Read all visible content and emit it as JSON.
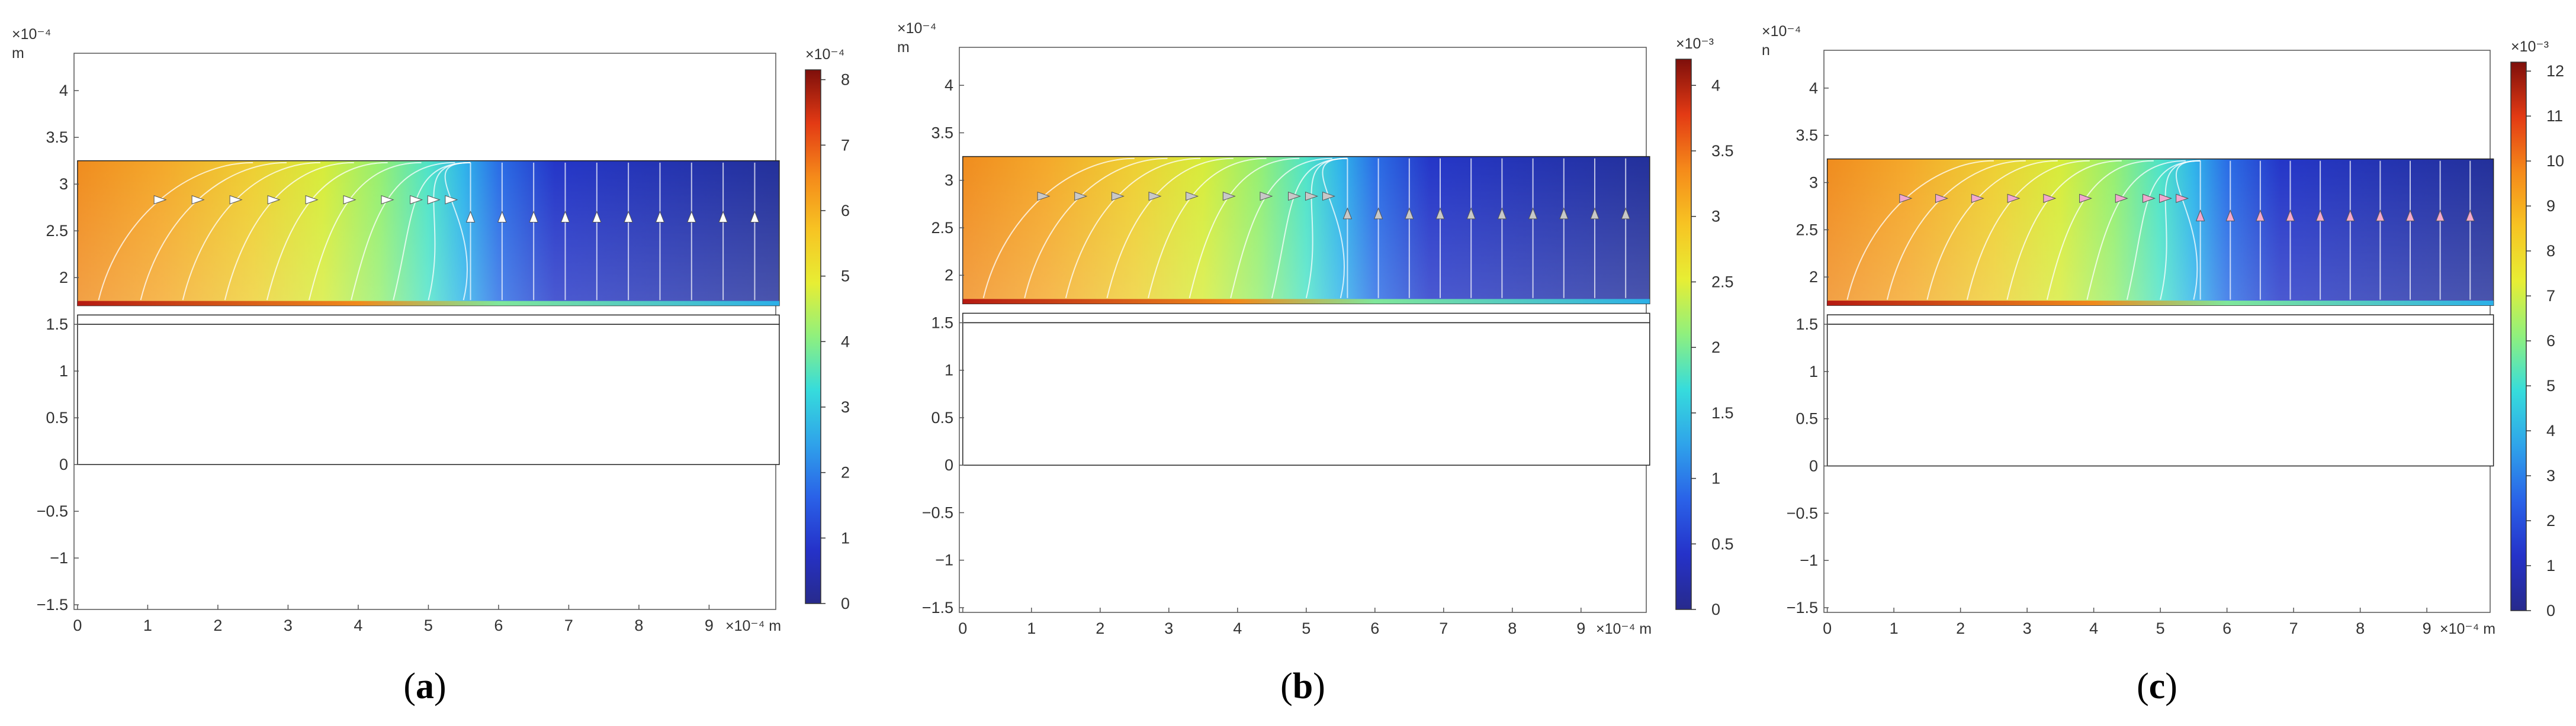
{
  "chart_data": [
    {
      "type": "heatmap",
      "panel_label": "(a)",
      "caption": {
        "open": "(",
        "letter": "a",
        "close": ")"
      },
      "x_ticks": [
        "0",
        "1",
        "2",
        "3",
        "4",
        "5",
        "6",
        "7",
        "8",
        "9"
      ],
      "y_ticks": [
        "4",
        "3.5",
        "3",
        "2.5",
        "2",
        "1.5",
        "1",
        "0.5",
        "0",
        "−0.5",
        "−1",
        "−1.5"
      ],
      "x_axis_multiplier": "×10⁻⁴ m",
      "y_axis_multiplier": "×10⁻⁴",
      "y_axis_unit": "m",
      "xlim": [
        -0.05,
        9.95
      ],
      "ylim": [
        -1.55,
        4.4
      ],
      "colorbar": {
        "multiplier": "×10⁻⁴",
        "ticks": [
          "8",
          "7",
          "6",
          "5",
          "4",
          "3",
          "2",
          "1",
          "0"
        ],
        "range": [
          0,
          8.15
        ]
      },
      "domains": {
        "top_layer_y": [
          1.7,
          3.25
        ],
        "thin_layer_y": [
          1.5,
          1.6
        ],
        "substrate_y": [
          0,
          1.5
        ],
        "x_extent": [
          0,
          10
        ]
      },
      "field_peak_x": 0,
      "streamline_arrow_color": "#ffffff"
    },
    {
      "type": "heatmap",
      "panel_label": "(b)",
      "caption": {
        "open": "(",
        "letter": "b",
        "close": ")"
      },
      "x_ticks": [
        "0",
        "1",
        "2",
        "3",
        "4",
        "5",
        "6",
        "7",
        "8",
        "9"
      ],
      "y_ticks": [
        "4",
        "3.5",
        "3",
        "2.5",
        "2",
        "1.5",
        "1",
        "0.5",
        "0",
        "−0.5",
        "−1",
        "−1.5"
      ],
      "x_axis_multiplier": "×10⁻⁴ m",
      "y_axis_multiplier": "×10⁻⁴",
      "y_axis_unit": "m",
      "xlim": [
        -0.05,
        9.95
      ],
      "ylim": [
        -1.55,
        4.4
      ],
      "colorbar": {
        "multiplier": "×10⁻³",
        "ticks": [
          "4",
          "3.5",
          "3",
          "2.5",
          "2",
          "1.5",
          "1",
          "0.5",
          "0"
        ],
        "range": [
          0,
          4.2
        ]
      },
      "domains": {
        "top_layer_y": [
          1.7,
          3.25
        ],
        "thin_layer_y": [
          1.5,
          1.6
        ],
        "substrate_y": [
          0,
          1.5
        ],
        "x_extent": [
          0,
          10
        ]
      },
      "field_peak_x": 0,
      "streamline_arrow_color": "#c8c8c8"
    },
    {
      "type": "heatmap",
      "panel_label": "(c)",
      "caption": {
        "open": "(",
        "letter": "c",
        "close": ")"
      },
      "x_ticks": [
        "0",
        "1",
        "2",
        "3",
        "4",
        "5",
        "6",
        "7",
        "8",
        "9"
      ],
      "y_ticks": [
        "4",
        "3.5",
        "3",
        "2.5",
        "2",
        "1.5",
        "1",
        "0.5",
        "0",
        "−0.5",
        "−1",
        "−1.5"
      ],
      "x_axis_multiplier": "×10⁻⁴ m",
      "y_axis_multiplier": "×10⁻⁴",
      "y_axis_unit": "n",
      "xlim": [
        -0.05,
        9.95
      ],
      "ylim": [
        -1.55,
        4.4
      ],
      "colorbar": {
        "multiplier": "×10⁻³",
        "ticks": [
          "12",
          "11",
          "10",
          "9",
          "8",
          "7",
          "6",
          "5",
          "4",
          "3",
          "2",
          "1",
          "0"
        ],
        "range": [
          0,
          12.2
        ]
      },
      "domains": {
        "top_layer_y": [
          1.7,
          3.25
        ],
        "thin_layer_y": [
          1.5,
          1.6
        ],
        "substrate_y": [
          0,
          1.5
        ],
        "x_extent": [
          0,
          10
        ]
      },
      "field_peak_x": 0,
      "streamline_arrow_color": "#f2a8cf"
    }
  ]
}
